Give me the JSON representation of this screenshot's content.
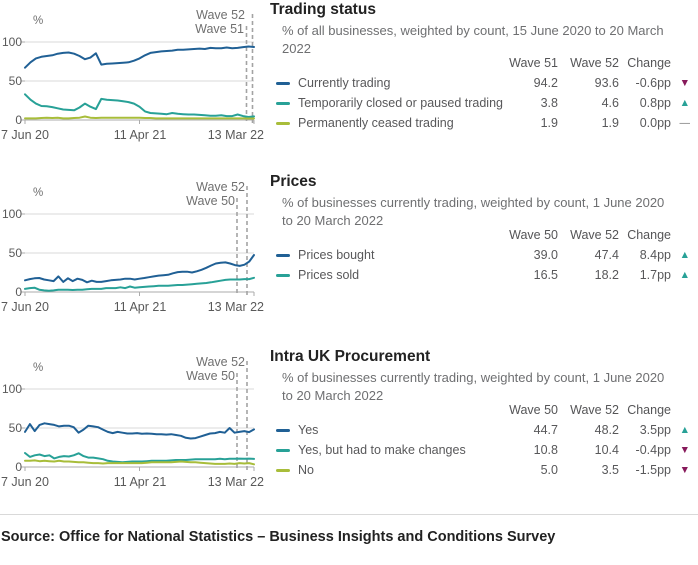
{
  "axis": {
    "unit": "%",
    "yticks": [
      "100",
      "50",
      "0"
    ],
    "xticks": [
      "7 Jun 20",
      "11 Apr 21",
      "13 Mar 22"
    ],
    "ylim": [
      0,
      100
    ]
  },
  "chart_data": [
    {
      "type": "line",
      "title": "Trading status",
      "subtitle": "% of all businesses, weighted by count, 15 June 2020 to 20 March 2022",
      "wave_labels": [
        "Wave 52",
        "Wave 51"
      ],
      "ylabel": "%",
      "ylim": [
        0,
        100
      ],
      "table": {
        "columns": [
          "Wave 51",
          "Wave 52",
          "Change"
        ],
        "rows": [
          {
            "label": "Currently trading",
            "color": "#206095",
            "wave1": "94.2",
            "wave2": "93.6",
            "change": "-0.6pp",
            "direction": "down",
            "arrow": "▼",
            "arrow_color": "#871a5b"
          },
          {
            "label": "Temporarily closed or paused trading",
            "color": "#28a197",
            "wave1": "3.8",
            "wave2": "4.6",
            "change": "0.8pp",
            "direction": "up",
            "arrow": "▲",
            "arrow_color": "#28a197"
          },
          {
            "label": "Permanently ceased trading",
            "color": "#a8bd3a",
            "wave1": "1.9",
            "wave2": "1.9",
            "change": "0.0pp",
            "direction": "none",
            "arrow": "—",
            "arrow_color": "#707070"
          }
        ]
      },
      "series": [
        {
          "name": "Currently trading",
          "color": "#206095",
          "values": [
            67,
            74,
            79,
            81,
            82,
            83,
            85,
            86,
            86.5,
            85,
            82,
            78,
            80,
            85.5,
            71,
            72,
            72.5,
            73,
            73.5,
            74,
            76,
            79,
            83,
            86,
            87,
            88,
            88.5,
            89,
            90,
            90,
            90.5,
            91,
            91.5,
            91,
            92.5,
            92,
            92,
            93,
            92,
            92.5,
            93.5,
            94.2,
            93.6
          ]
        },
        {
          "name": "Temporarily closed or paused trading",
          "color": "#28a197",
          "values": [
            33,
            26,
            21,
            18,
            17.5,
            16.5,
            15,
            13.5,
            13,
            12.5,
            16,
            21,
            17,
            14,
            27,
            26,
            25.5,
            25,
            24,
            23,
            21,
            17,
            11,
            9,
            8.5,
            8,
            7.5,
            9,
            8,
            7.5,
            7,
            7,
            6.5,
            6,
            5.5,
            5.5,
            6,
            5,
            5,
            7,
            5,
            3.8,
            4.6
          ]
        },
        {
          "name": "Permanently ceased trading",
          "color": "#a8bd3a",
          "values": [
            2,
            2,
            2,
            2.5,
            3,
            2.5,
            3,
            2,
            2,
            2.5,
            3,
            4.5,
            3,
            2.5,
            3,
            3,
            3,
            3,
            3,
            3,
            3,
            3,
            2.5,
            2.5,
            2,
            2,
            2,
            2,
            2,
            2,
            2,
            2,
            2,
            2,
            2,
            2,
            2,
            2,
            2,
            2,
            2,
            1.9,
            1.9
          ]
        }
      ]
    },
    {
      "type": "line",
      "title": "Prices",
      "subtitle": "% of businesses currently trading, weighted by count, 1 June 2020 to 20 March 2022",
      "wave_labels": [
        "Wave 52",
        "Wave 50"
      ],
      "ylabel": "%",
      "ylim": [
        0,
        100
      ],
      "table": {
        "columns": [
          "Wave 50",
          "Wave 52",
          "Change"
        ],
        "rows": [
          {
            "label": "Prices bought",
            "color": "#206095",
            "wave1": "39.0",
            "wave2": "47.4",
            "change": "8.4pp",
            "direction": "up",
            "arrow": "▲",
            "arrow_color": "#28a197"
          },
          {
            "label": "Prices sold",
            "color": "#28a197",
            "wave1": "16.5",
            "wave2": "18.2",
            "change": "1.7pp",
            "direction": "up",
            "arrow": "▲",
            "arrow_color": "#28a197"
          }
        ]
      },
      "series": [
        {
          "name": "Prices bought",
          "color": "#206095",
          "values": [
            15,
            16.5,
            17.5,
            18,
            16,
            15,
            14,
            20,
            13,
            17.5,
            14,
            17,
            15.5,
            12.5,
            14.5,
            13,
            13,
            14,
            15,
            15.5,
            16,
            17,
            17,
            16,
            17,
            18,
            19,
            20,
            21,
            21.5,
            22,
            24,
            25.5,
            26,
            26,
            25,
            26.5,
            28.5,
            31,
            34,
            36.5,
            37.5,
            38,
            36.5,
            34.5,
            33.5,
            35,
            39,
            47.4
          ]
        },
        {
          "name": "Prices sold",
          "color": "#28a197",
          "values": [
            4,
            5,
            5.5,
            3,
            2,
            1.5,
            2,
            3,
            3,
            3,
            2.5,
            3,
            3,
            3.5,
            4,
            4,
            4,
            5,
            5,
            5,
            6,
            5,
            7,
            5.5,
            6,
            6.5,
            7,
            7.5,
            8,
            8,
            8,
            8.5,
            9,
            9,
            9.5,
            10,
            10.5,
            11,
            11.5,
            12.5,
            13.5,
            14.5,
            15.5,
            16,
            16,
            16,
            16.5,
            16.5,
            18.2
          ]
        }
      ]
    },
    {
      "type": "line",
      "title": "Intra UK Procurement",
      "subtitle": "% of businesses currently trading, weighted by count, 1 June 2020 to 20 March 2022",
      "wave_labels": [
        "Wave 52",
        "Wave 50"
      ],
      "ylabel": "%",
      "ylim": [
        0,
        100
      ],
      "table": {
        "columns": [
          "Wave 50",
          "Wave 52",
          "Change"
        ],
        "rows": [
          {
            "label": "Yes",
            "color": "#206095",
            "wave1": "44.7",
            "wave2": "48.2",
            "change": "3.5pp",
            "direction": "up",
            "arrow": "▲",
            "arrow_color": "#28a197"
          },
          {
            "label": "Yes, but had to make changes",
            "color": "#28a197",
            "wave1": "10.8",
            "wave2": "10.4",
            "change": "-0.4pp",
            "direction": "down",
            "arrow": "▼",
            "arrow_color": "#871a5b"
          },
          {
            "label": "No",
            "color": "#a8bd3a",
            "wave1": "5.0",
            "wave2": "3.5",
            "change": "-1.5pp",
            "direction": "down",
            "arrow": "▼",
            "arrow_color": "#871a5b"
          }
        ]
      },
      "series": [
        {
          "name": "Yes",
          "color": "#206095",
          "values": [
            45,
            55,
            46,
            54,
            56,
            55,
            54,
            52,
            53,
            53,
            51,
            44,
            48,
            53,
            52,
            51,
            48,
            45,
            43.5,
            45,
            44,
            43,
            43,
            43.5,
            42.5,
            43,
            42.5,
            42,
            42,
            41.5,
            42,
            41,
            40,
            37.5,
            36.5,
            37,
            39,
            41,
            43,
            43.5,
            45,
            44,
            50,
            44,
            45,
            46,
            44.7,
            48.2
          ]
        },
        {
          "name": "Yes, but had to make changes",
          "color": "#28a197",
          "values": [
            18,
            13,
            15,
            16,
            14,
            15,
            11,
            13,
            14,
            13.5,
            15,
            17.5,
            14,
            12,
            12,
            11,
            10,
            8,
            7,
            6.5,
            6,
            6.5,
            7,
            7,
            7,
            7.5,
            8,
            8,
            8,
            8,
            8.5,
            9,
            9,
            9,
            9.5,
            10,
            10,
            10,
            10,
            10,
            10.5,
            10,
            10.5,
            10.6,
            10.8,
            10.5,
            10.8,
            10.4
          ]
        },
        {
          "name": "No",
          "color": "#a8bd3a",
          "values": [
            8,
            8,
            8.5,
            7.5,
            8,
            7.5,
            7,
            8,
            7,
            7,
            6.5,
            6,
            6,
            5.5,
            5,
            5,
            4.5,
            5,
            5,
            5,
            5,
            5,
            5,
            5,
            5,
            5.5,
            6,
            6,
            6,
            6,
            6,
            6.5,
            7,
            6.5,
            6,
            6,
            5.5,
            5,
            4.5,
            4,
            4,
            4,
            4.5,
            4,
            5,
            4.5,
            5.0,
            3.5
          ]
        }
      ]
    }
  ],
  "footer": {
    "source": "Source: Office for National Statistics – Business Insights and Conditions Survey"
  }
}
